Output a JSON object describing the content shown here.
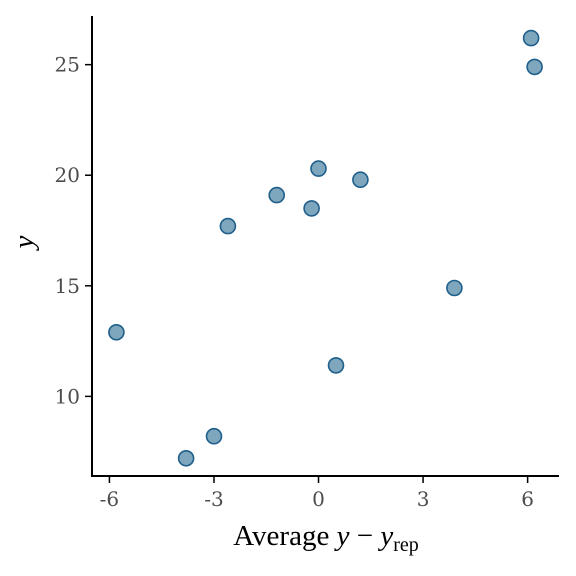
{
  "chart_data": {
    "type": "scatter",
    "xlabel": {
      "prefix": "Average ",
      "y": "y",
      "minus": " − ",
      "yrep": "y",
      "yrep_sub": "rep"
    },
    "ylabel": "y",
    "xlim": [
      -6.5,
      6.9
    ],
    "ylim": [
      6.4,
      27.2
    ],
    "x_ticks": [
      -6,
      -3,
      0,
      3,
      6
    ],
    "x_tick_labels": [
      "-6",
      "-3",
      "0",
      "3",
      "6"
    ],
    "y_ticks": [
      10,
      15,
      20,
      25
    ],
    "y_tick_labels": [
      "10",
      "15",
      "20",
      "25"
    ],
    "grid": false,
    "legend": "none",
    "point_fill": "#7ea6bd",
    "point_stroke": "#1f5f8b",
    "x": [
      -5.8,
      -3.8,
      -3.0,
      -2.6,
      -1.2,
      -0.2,
      0.0,
      0.5,
      1.2,
      3.9,
      6.1,
      6.2
    ],
    "y": [
      12.9,
      7.2,
      8.2,
      17.7,
      19.1,
      18.5,
      20.3,
      11.4,
      19.8,
      14.9,
      26.2,
      24.9
    ]
  }
}
